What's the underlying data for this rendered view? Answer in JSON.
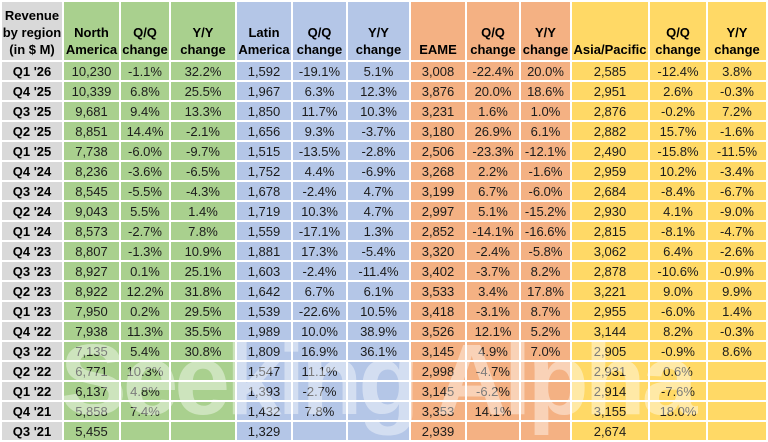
{
  "header": {
    "corner": "Revenue\nby region\n(in $ M)",
    "qq": "Q/Q\nchange",
    "yy": "Y/Y\nchange",
    "groups": [
      {
        "title": "North\nAmerica"
      },
      {
        "title": "Latin\nAmerica"
      },
      {
        "title": "EAME"
      },
      {
        "title": "Asia/Pacific"
      }
    ]
  },
  "watermark": "Seeking Alpha",
  "colors": {
    "row_header_bg": "#d9d9d9",
    "north_america_bg": "#a9d08e",
    "latin_america_bg": "#b4c6e7",
    "eame_bg": "#f4b183",
    "asia_pacific_bg": "#ffd966",
    "gridline": "#ffffff",
    "text": "#000000"
  },
  "chart_data": {
    "type": "table",
    "title": "Revenue by region (in $ M)",
    "columns": [
      "Quarter",
      "North America",
      "North America Q/Q change",
      "North America Y/Y change",
      "Latin America",
      "Latin America Q/Q change",
      "Latin America Y/Y change",
      "EAME",
      "EAME Q/Q change",
      "EAME Y/Y change",
      "Asia/Pacific",
      "Asia/Pacific Q/Q change",
      "Asia/Pacific Y/Y change"
    ],
    "rows": [
      {
        "quarter": "Q1 '26",
        "values": [
          "10,230",
          "-1.1%",
          "32.2%",
          "1,592",
          "-19.1%",
          "5.1%",
          "3,008",
          "-22.4%",
          "20.0%",
          "2,585",
          "-12.4%",
          "3.8%"
        ]
      },
      {
        "quarter": "Q4 '25",
        "values": [
          "10,339",
          "6.8%",
          "25.5%",
          "1,967",
          "6.3%",
          "12.3%",
          "3,876",
          "20.0%",
          "18.6%",
          "2,951",
          "2.6%",
          "-0.3%"
        ]
      },
      {
        "quarter": "Q3 '25",
        "values": [
          "9,681",
          "9.4%",
          "13.3%",
          "1,850",
          "11.7%",
          "10.3%",
          "3,231",
          "1.6%",
          "1.0%",
          "2,876",
          "-0.2%",
          "7.2%"
        ]
      },
      {
        "quarter": "Q2 '25",
        "values": [
          "8,851",
          "14.4%",
          "-2.1%",
          "1,656",
          "9.3%",
          "-3.7%",
          "3,180",
          "26.9%",
          "6.1%",
          "2,882",
          "15.7%",
          "-1.6%"
        ]
      },
      {
        "quarter": "Q1 '25",
        "values": [
          "7,738",
          "-6.0%",
          "-9.7%",
          "1,515",
          "-13.5%",
          "-2.8%",
          "2,506",
          "-23.3%",
          "-12.1%",
          "2,490",
          "-15.8%",
          "-11.5%"
        ]
      },
      {
        "quarter": "Q4 '24",
        "values": [
          "8,236",
          "-3.6%",
          "-6.5%",
          "1,752",
          "4.4%",
          "-6.9%",
          "3,268",
          "2.2%",
          "-1.6%",
          "2,959",
          "10.2%",
          "-3.4%"
        ]
      },
      {
        "quarter": "Q3 '24",
        "values": [
          "8,545",
          "-5.5%",
          "-4.3%",
          "1,678",
          "-2.4%",
          "4.7%",
          "3,199",
          "6.7%",
          "-6.0%",
          "2,684",
          "-8.4%",
          "-6.7%"
        ]
      },
      {
        "quarter": "Q2 '24",
        "values": [
          "9,043",
          "5.5%",
          "1.4%",
          "1,719",
          "10.3%",
          "4.7%",
          "2,997",
          "5.1%",
          "-15.2%",
          "2,930",
          "4.1%",
          "-9.0%"
        ]
      },
      {
        "quarter": "Q1 '24",
        "values": [
          "8,573",
          "-2.7%",
          "7.8%",
          "1,559",
          "-17.1%",
          "1.3%",
          "2,852",
          "-14.1%",
          "-16.6%",
          "2,815",
          "-8.1%",
          "-4.7%"
        ]
      },
      {
        "quarter": "Q4 '23",
        "values": [
          "8,807",
          "-1.3%",
          "10.9%",
          "1,881",
          "17.3%",
          "-5.4%",
          "3,320",
          "-2.4%",
          "-5.8%",
          "3,062",
          "6.4%",
          "-2.6%"
        ]
      },
      {
        "quarter": "Q3 '23",
        "values": [
          "8,927",
          "0.1%",
          "25.1%",
          "1,603",
          "-2.4%",
          "-11.4%",
          "3,402",
          "-3.7%",
          "8.2%",
          "2,878",
          "-10.6%",
          "-0.9%"
        ]
      },
      {
        "quarter": "Q2 '23",
        "values": [
          "8,922",
          "12.2%",
          "31.8%",
          "1,642",
          "6.7%",
          "6.1%",
          "3,533",
          "3.4%",
          "17.8%",
          "3,221",
          "9.0%",
          "9.9%"
        ]
      },
      {
        "quarter": "Q1 '23",
        "values": [
          "7,950",
          "0.2%",
          "29.5%",
          "1,539",
          "-22.6%",
          "10.5%",
          "3,418",
          "-3.1%",
          "8.7%",
          "2,955",
          "-6.0%",
          "1.4%"
        ]
      },
      {
        "quarter": "Q4 '22",
        "values": [
          "7,938",
          "11.3%",
          "35.5%",
          "1,989",
          "10.0%",
          "38.9%",
          "3,526",
          "12.1%",
          "5.2%",
          "3,144",
          "8.2%",
          "-0.3%"
        ]
      },
      {
        "quarter": "Q3 '22",
        "values": [
          "7,135",
          "5.4%",
          "30.8%",
          "1,809",
          "16.9%",
          "36.1%",
          "3,145",
          "4.9%",
          "7.0%",
          "2,905",
          "-0.9%",
          "8.6%"
        ]
      },
      {
        "quarter": "Q2 '22",
        "values": [
          "6,771",
          "10.3%",
          "",
          "1,547",
          "11.1%",
          "",
          "2,998",
          "-4.7%",
          "",
          "2,931",
          "0.6%",
          ""
        ]
      },
      {
        "quarter": "Q1 '22",
        "values": [
          "6,137",
          "4.8%",
          "",
          "1,393",
          "-2.7%",
          "",
          "3,145",
          "-6.2%",
          "",
          "2,914",
          "-7.6%",
          ""
        ]
      },
      {
        "quarter": "Q4 '21",
        "values": [
          "5,858",
          "7.4%",
          "",
          "1,432",
          "7.8%",
          "",
          "3,353",
          "14.1%",
          "",
          "3,155",
          "18.0%",
          ""
        ]
      },
      {
        "quarter": "Q3 '21",
        "values": [
          "5,455",
          "",
          "",
          "1,329",
          "",
          "",
          "2,939",
          "",
          "",
          "2,674",
          "",
          ""
        ]
      }
    ]
  }
}
